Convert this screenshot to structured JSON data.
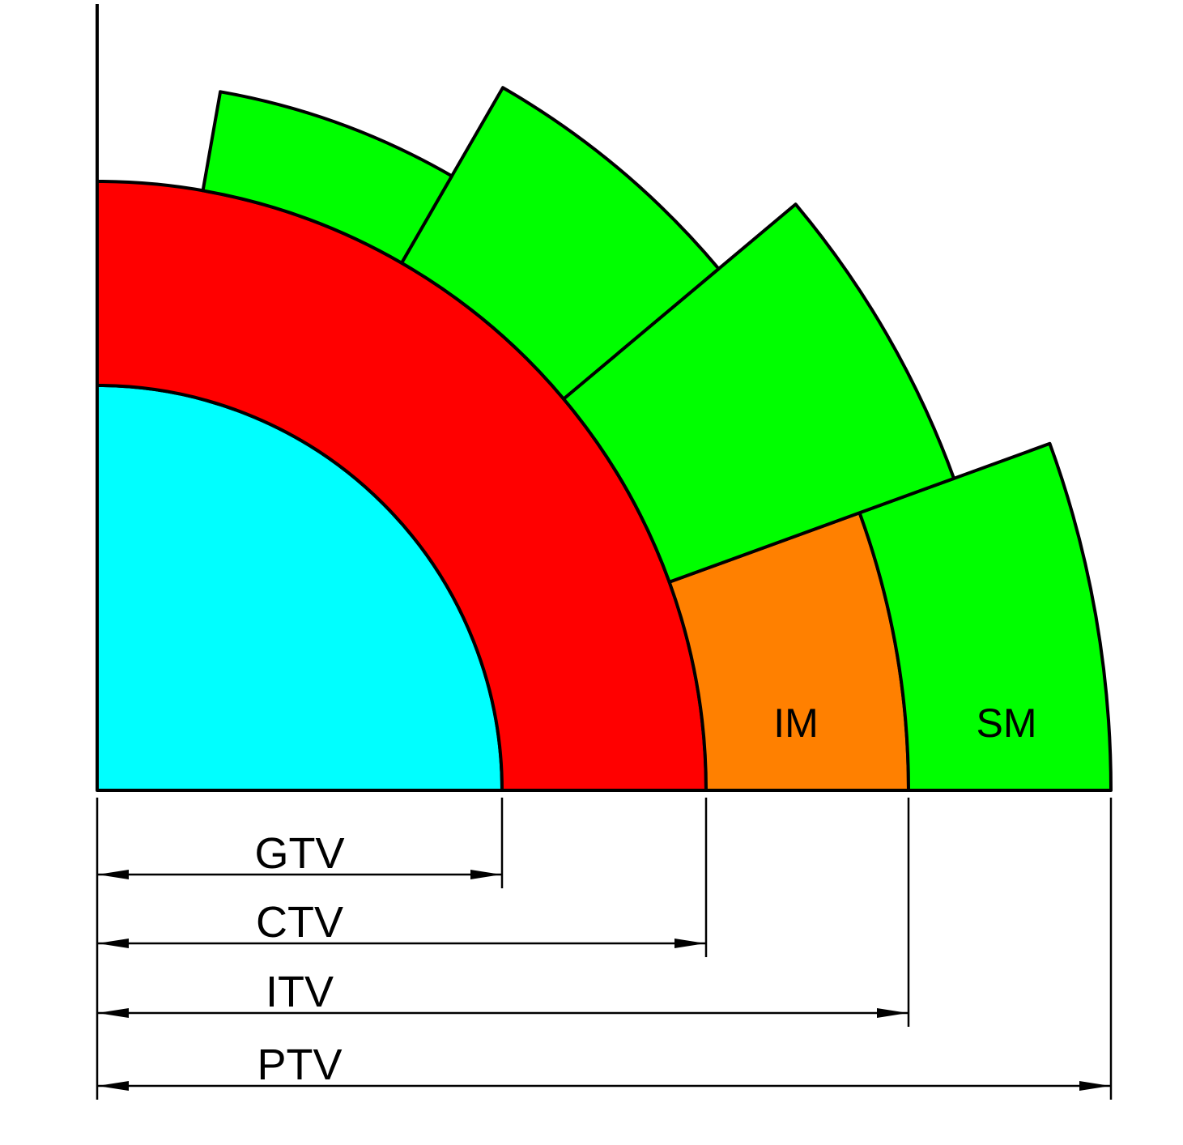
{
  "regions": {
    "inner_margin": "IM",
    "setup_margin": "SM"
  },
  "dimensions": [
    "GTV",
    "CTV",
    "ITV",
    "PTV"
  ]
}
